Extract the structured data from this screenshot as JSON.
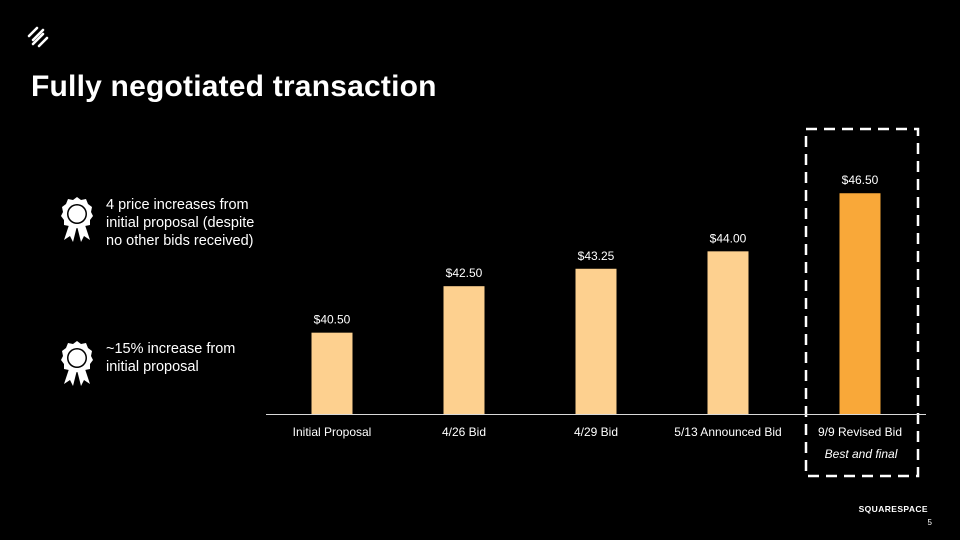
{
  "slide": {
    "title": "Fully negotiated transaction",
    "brand": "SQUARESPACE",
    "page_number": "5"
  },
  "callouts": [
    {
      "icon": "award-ribbon-icon",
      "text": "4 price increases from initial proposal (despite no other bids received)"
    },
    {
      "icon": "award-ribbon-icon",
      "text": "~15% increase from initial proposal"
    }
  ],
  "colors": {
    "background": "#000000",
    "bar": "#FDD08F",
    "highlight_bar": "#F9A839",
    "text": "#FFFFFF"
  },
  "chart_data": {
    "type": "bar",
    "categories": [
      "Initial Proposal",
      "4/26 Bid",
      "4/29 Bid",
      "5/13 Announced Bid",
      "9/9 Revised Bid"
    ],
    "values": [
      40.5,
      42.5,
      43.25,
      44.0,
      46.5
    ],
    "data_labels": [
      "$40.50",
      "$42.50",
      "$43.25",
      "$44.00",
      "$46.50"
    ],
    "highlight_index": 4,
    "highlight_note": "Best and final",
    "ylim": [
      37,
      47.5
    ],
    "grid": false,
    "legend": "none"
  }
}
